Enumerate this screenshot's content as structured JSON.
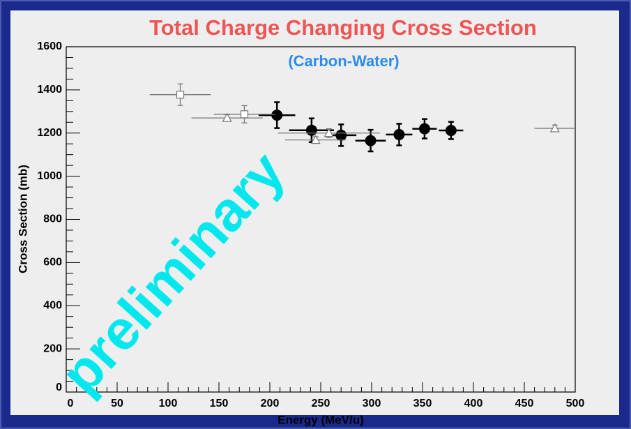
{
  "chart_data": {
    "type": "scatter",
    "title": "Total Charge Changing Cross Section",
    "subtitle": "(Carbon-Water)",
    "xlabel": "Energy (MeV/u)",
    "ylabel": "Cross Section (mb)",
    "annotation": "preliminary",
    "xlim": [
      0,
      500
    ],
    "ylim": [
      0,
      1600
    ],
    "xticks": [
      0,
      50,
      100,
      150,
      200,
      250,
      300,
      350,
      400,
      450,
      500
    ],
    "yticks": [
      0,
      200,
      400,
      600,
      800,
      1000,
      1200,
      1400,
      1600
    ],
    "x_minor_divisions": 5,
    "y_minor_divisions": 4,
    "series": [
      {
        "marker": "circle",
        "color": "#000000",
        "x": [
          207,
          241,
          270,
          299,
          327,
          352,
          378
        ],
        "xerr": [
          18,
          22,
          15,
          15,
          13,
          12,
          12
        ],
        "values": [
          1283,
          1213,
          1190,
          1165,
          1193,
          1220,
          1212
        ],
        "yerr": [
          60,
          55,
          50,
          50,
          50,
          45,
          40
        ]
      },
      {
        "marker": "square",
        "color": "#777777",
        "x": [
          112,
          175
        ],
        "xerr": [
          30,
          30
        ],
        "values": [
          1378,
          1287
        ],
        "yerr": [
          50,
          40
        ]
      },
      {
        "marker": "triangle",
        "color": "#777777",
        "x": [
          158,
          245,
          258,
          480
        ],
        "xerr": [
          35,
          30,
          50,
          20
        ],
        "values": [
          1270,
          1168,
          1200,
          1222
        ],
        "yerr": [
          15,
          15,
          20,
          15
        ]
      }
    ]
  }
}
